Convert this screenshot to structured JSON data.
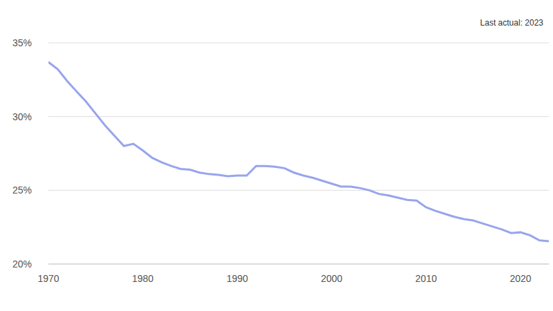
{
  "chart_data": {
    "type": "line",
    "annotation": "Last actual: 2023",
    "x": [
      1970,
      1971,
      1972,
      1973,
      1974,
      1975,
      1976,
      1977,
      1978,
      1979,
      1980,
      1981,
      1982,
      1983,
      1984,
      1985,
      1986,
      1987,
      1988,
      1989,
      1990,
      1991,
      1992,
      1993,
      1994,
      1995,
      1996,
      1997,
      1998,
      1999,
      2000,
      2001,
      2002,
      2003,
      2004,
      2005,
      2006,
      2007,
      2008,
      2009,
      2010,
      2011,
      2012,
      2013,
      2014,
      2015,
      2016,
      2017,
      2018,
      2019,
      2020,
      2021,
      2022,
      2023
    ],
    "values": [
      33.7,
      33.2,
      32.4,
      31.7,
      31.0,
      30.2,
      29.4,
      28.7,
      28.0,
      28.15,
      27.7,
      27.2,
      26.9,
      26.65,
      26.45,
      26.4,
      26.2,
      26.1,
      26.05,
      25.95,
      26.0,
      26.0,
      26.65,
      26.65,
      26.6,
      26.5,
      26.2,
      26.0,
      25.85,
      25.65,
      25.45,
      25.25,
      25.25,
      25.15,
      25.0,
      24.75,
      24.65,
      24.5,
      24.35,
      24.3,
      23.85,
      23.6,
      23.4,
      23.2,
      23.05,
      22.95,
      22.75,
      22.55,
      22.35,
      22.1,
      22.15,
      21.95,
      21.6,
      21.55
    ],
    "color": "#98a4ec",
    "xlim": [
      1970,
      2023
    ],
    "xticks": [
      1970,
      1980,
      1990,
      2000,
      2010,
      2020
    ],
    "ylim": [
      20,
      35
    ],
    "yticks": [
      {
        "value": 20,
        "label": "20%"
      },
      {
        "value": 25,
        "label": "25%"
      },
      {
        "value": 30,
        "label": "30%"
      },
      {
        "value": 35,
        "label": "35%"
      }
    ],
    "grid": true
  }
}
